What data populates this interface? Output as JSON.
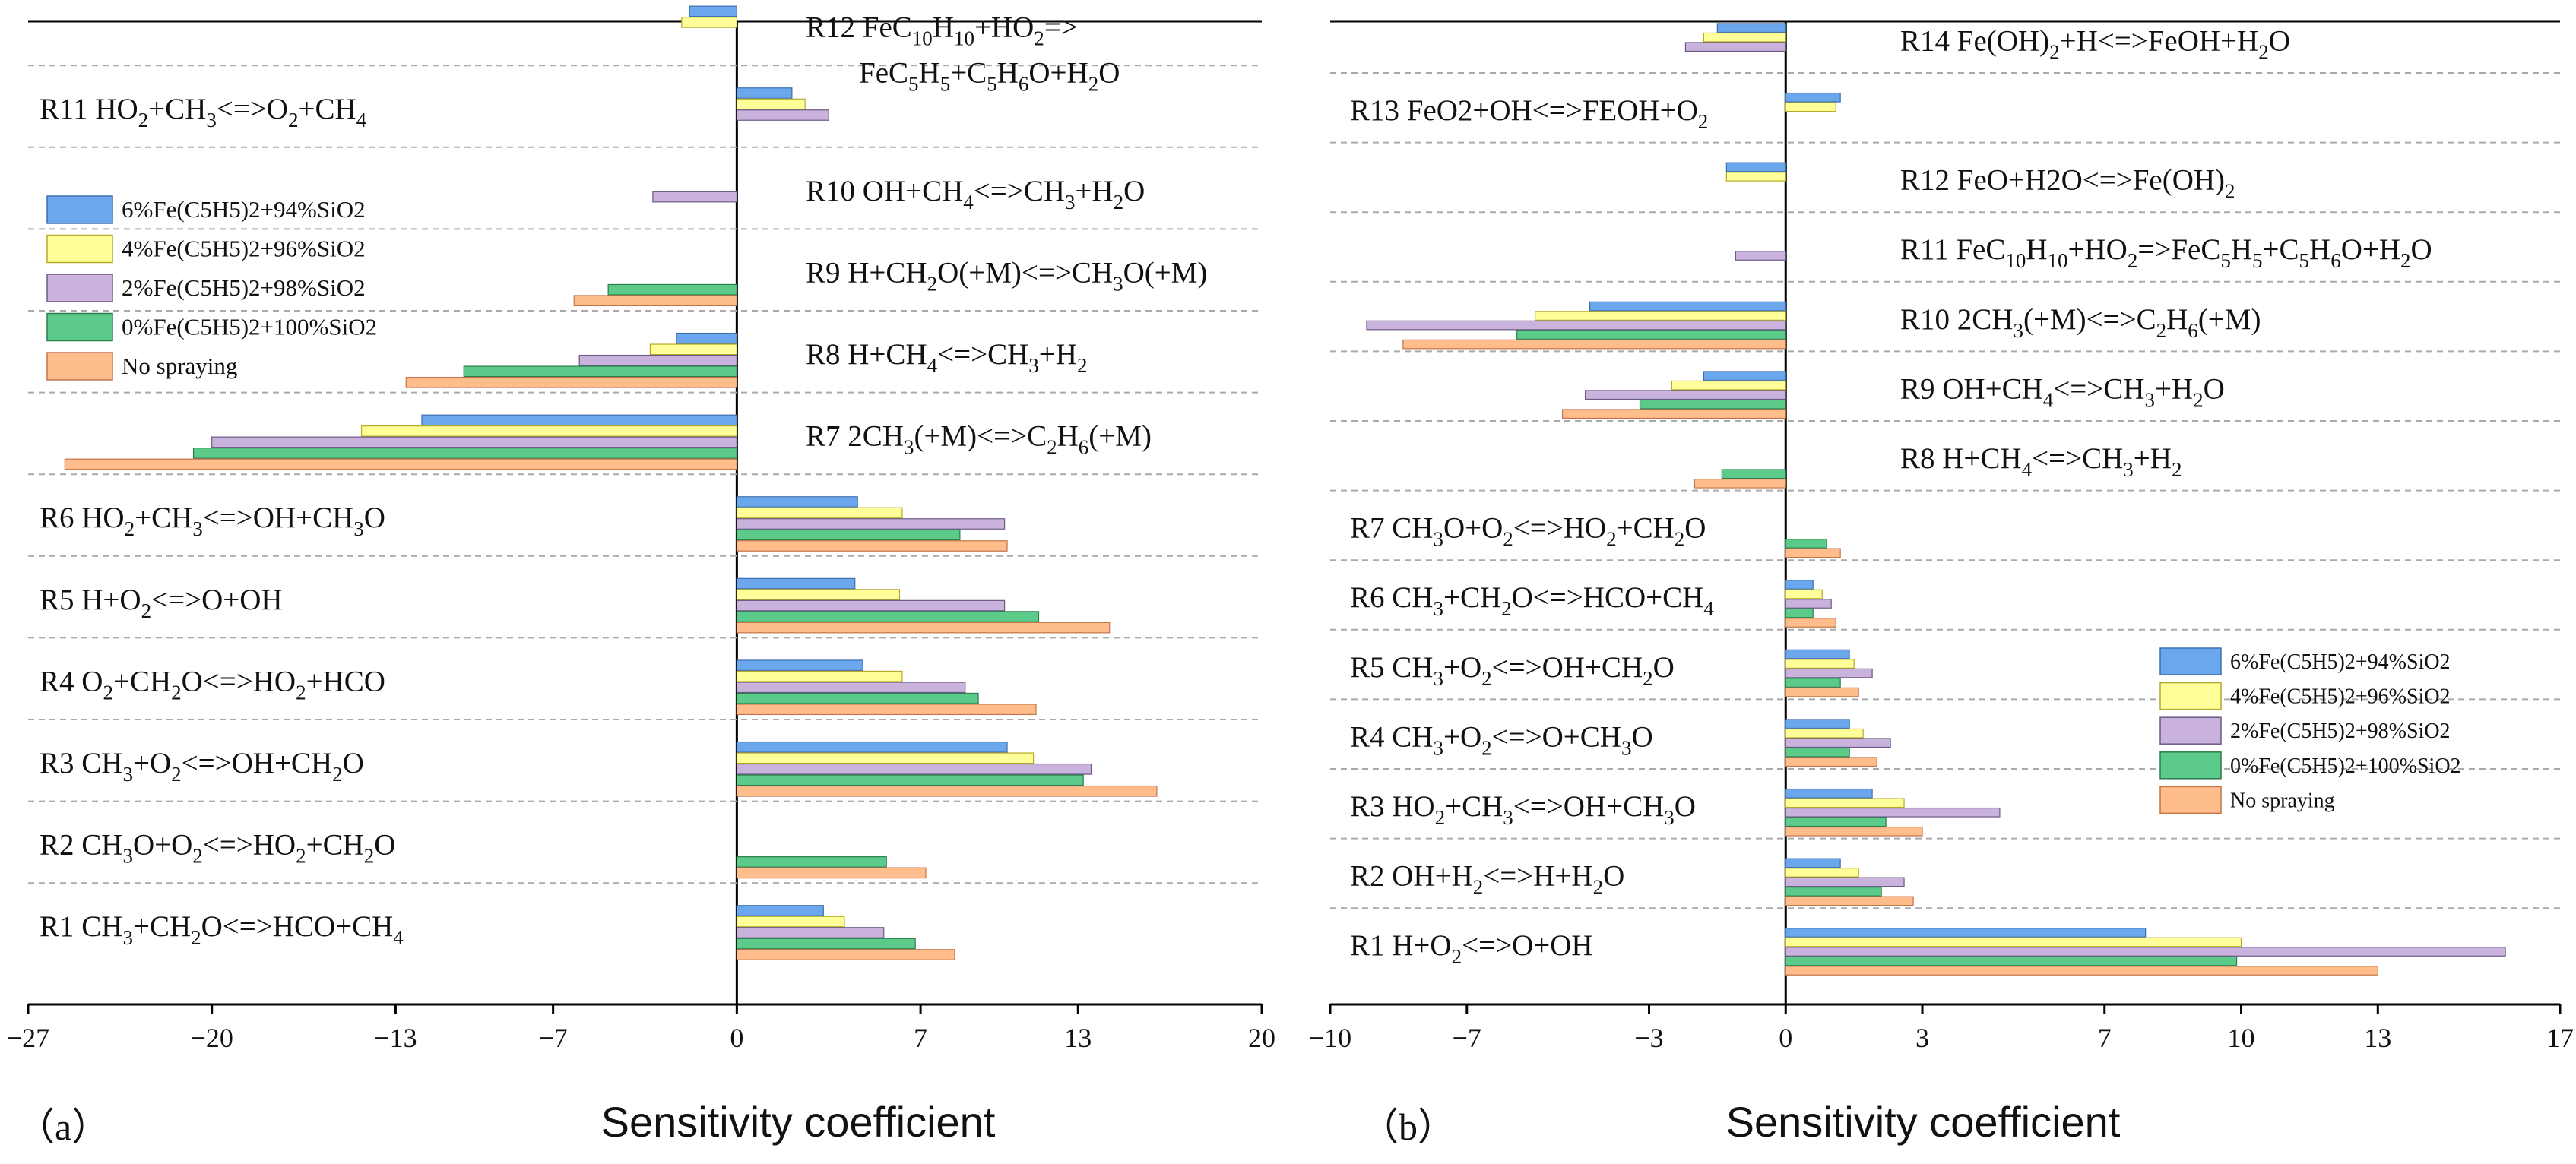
{
  "figure": {
    "xlabel": "Sensitivity coefficient"
  },
  "legend_entries": [
    "6%Fe(C5H5)2+94%SiO2",
    "4%Fe(C5H5)2+96%SiO2",
    "2%Fe(C5H5)2+98%SiO2",
    "0%Fe(C5H5)2+100%SiO2",
    "No spraying"
  ],
  "colors": [
    "#6aa7ec",
    "#ffff99",
    "#c9b3dd",
    "#5ccb8a",
    "#ffbd8c"
  ],
  "chart_data": [
    {
      "type": "bar",
      "orientation": "horizontal",
      "panel_label": "（a）",
      "xlabel": "Sensitivity coefficient",
      "xlim": [
        -27,
        20
      ],
      "xticks": [
        -27,
        -20,
        -13,
        -7,
        0,
        7,
        13,
        20
      ],
      "legend_position": "upper-left",
      "reactions": [
        {
          "id": "R1",
          "html": "R1 CH<sub>3</sub>+CH<sub>2</sub>O&lt;=&gt;HCO+CH<sub>4</sub>",
          "side": "left"
        },
        {
          "id": "R2",
          "html": "R2 CH<sub>3</sub>O+O<sub>2</sub>&lt;=&gt;HO<sub>2</sub>+CH<sub>2</sub>O",
          "side": "left"
        },
        {
          "id": "R3",
          "html": "R3  CH<sub>3</sub>+O<sub>2</sub>&lt;=&gt;OH+CH<sub>2</sub>O",
          "side": "left"
        },
        {
          "id": "R4",
          "html": "R4 O<sub>2</sub>+CH<sub>2</sub>O&lt;=&gt;HO<sub>2</sub>+HCO",
          "side": "left"
        },
        {
          "id": "R5",
          "html": "R5  H+O<sub>2</sub>&lt;=&gt;O+OH",
          "side": "left"
        },
        {
          "id": "R6",
          "html": "R6 HO<sub>2</sub>+CH<sub>3</sub>&lt;=&gt;OH+CH<sub>3</sub>O",
          "side": "left"
        },
        {
          "id": "R7",
          "html": "R7 2CH<sub>3</sub>(+M)&lt;=&gt;C<sub>2</sub>H<sub>6</sub>(+M)",
          "side": "right"
        },
        {
          "id": "R8",
          "html": "R8  H+CH<sub>4</sub>&lt;=&gt;CH<sub>3</sub>+H<sub>2</sub>",
          "side": "right"
        },
        {
          "id": "R9",
          "html": "R9 H+CH<sub>2</sub>O(+M)&lt;=&gt;CH<sub>3</sub>O(+M)",
          "side": "right"
        },
        {
          "id": "R10",
          "html": "R10 OH+CH<sub>4</sub>&lt;=&gt;CH<sub>3</sub>+H<sub>2</sub>O",
          "side": "right"
        },
        {
          "id": "R11",
          "html": "R11 HO<sub>2</sub>+CH<sub>3</sub>&lt;=&gt;O<sub>2</sub>+CH<sub>4</sub>",
          "side": "left"
        },
        {
          "id": "R12",
          "html": "R12 FeC<sub>10</sub>H<sub>10</sub>+HO<sub>2</sub>=&gt;",
          "html2": "FeC<sub>5</sub>H<sub>5</sub>+C<sub>5</sub>H<sub>6</sub>O+H<sub>2</sub>O",
          "side": "right"
        }
      ],
      "series": [
        {
          "name": "6%Fe(C5H5)2+94%SiO2",
          "values": [
            3.3,
            null,
            10.3,
            4.8,
            4.5,
            4.6,
            -12.0,
            -2.3,
            null,
            null,
            2.1,
            -1.8
          ]
        },
        {
          "name": "4%Fe(C5H5)2+96%SiO2",
          "values": [
            4.1,
            null,
            11.3,
            6.3,
            6.2,
            6.3,
            -14.3,
            -3.3,
            null,
            null,
            2.6,
            -2.1
          ]
        },
        {
          "name": "2%Fe(C5H5)2+98%SiO2",
          "values": [
            5.6,
            null,
            13.5,
            8.7,
            10.2,
            10.2,
            -20.0,
            -6.0,
            null,
            -3.2,
            3.5,
            null
          ]
        },
        {
          "name": "0%Fe(C5H5)2+100%SiO2",
          "values": [
            6.8,
            5.7,
            13.2,
            9.2,
            11.5,
            8.5,
            -20.7,
            -10.4,
            -4.9,
            null,
            null,
            null
          ]
        },
        {
          "name": "No spraying",
          "values": [
            8.3,
            7.2,
            16.0,
            11.4,
            14.2,
            10.3,
            -25.6,
            -12.6,
            -6.2,
            null,
            null,
            null
          ]
        }
      ]
    },
    {
      "type": "bar",
      "orientation": "horizontal",
      "panel_label": "（b）",
      "xlabel": "Sensitivity coefficient",
      "xlim": [
        -10,
        17
      ],
      "xticks": [
        -10,
        -7,
        -3,
        0,
        3,
        7,
        10,
        13,
        17
      ],
      "legend_position": "lower-right",
      "reactions": [
        {
          "id": "R1",
          "html": "R1 H+O<sub>2</sub>&lt;=&gt;O+OH",
          "side": "left"
        },
        {
          "id": "R2",
          "html": "R2 OH+H<sub>2</sub>&lt;=&gt;H+H<sub>2</sub>O",
          "side": "left"
        },
        {
          "id": "R3",
          "html": "R3  HO<sub>2</sub>+CH<sub>3</sub>&lt;=&gt;OH+CH<sub>3</sub>O",
          "side": "left"
        },
        {
          "id": "R4",
          "html": "R4 CH<sub>3</sub>+O<sub>2</sub>&lt;=&gt;O+CH<sub>3</sub>O",
          "side": "left"
        },
        {
          "id": "R5",
          "html": "R5 CH<sub>3</sub>+O<sub>2</sub>&lt;=&gt;OH+CH<sub>2</sub>O",
          "side": "left"
        },
        {
          "id": "R6",
          "html": "R6  CH<sub>3</sub>+CH<sub>2</sub>O&lt;=&gt;HCO+CH<sub>4</sub>",
          "side": "left"
        },
        {
          "id": "R7",
          "html": "R7 CH<sub>3</sub>O+O<sub>2</sub>&lt;=&gt;HO<sub>2</sub>+CH<sub>2</sub>O",
          "side": "left"
        },
        {
          "id": "R8",
          "html": "R8 H+CH<sub>4</sub>&lt;=&gt;CH<sub>3</sub>+H<sub>2</sub>",
          "side": "right"
        },
        {
          "id": "R9",
          "html": "R9 OH+CH<sub>4</sub>&lt;=&gt;CH<sub>3</sub>+H<sub>2</sub>O",
          "side": "right"
        },
        {
          "id": "R10",
          "html": "R10 2CH<sub>3</sub>(+M)&lt;=&gt;C<sub>2</sub>H<sub>6</sub>(+M)",
          "side": "right"
        },
        {
          "id": "R11",
          "html": "R11 FeC<sub>10</sub>H<sub>10</sub>+HO<sub>2</sub>=&gt;FeC<sub>5</sub>H<sub>5</sub>+C<sub>5</sub>H<sub>6</sub>O+H<sub>2</sub>O",
          "side": "right"
        },
        {
          "id": "R12",
          "html": "R12 FeO+H2O&lt;=&gt;Fe(OH)<sub>2</sub>",
          "side": "right"
        },
        {
          "id": "R13",
          "html": "R13 FeO2+OH&lt;=&gt;FEOH+O<sub>2</sub>",
          "side": "left"
        },
        {
          "id": "R14",
          "html": "R14  Fe(OH)<sub>2</sub>+H&lt;=&gt;FeOH+H<sub>2</sub>O",
          "side": "right"
        }
      ],
      "series": [
        {
          "name": "6%Fe(C5H5)2+94%SiO2",
          "values": [
            7.9,
            1.2,
            1.9,
            1.4,
            1.4,
            0.6,
            null,
            null,
            -1.8,
            -4.3,
            null,
            -1.3,
            1.2,
            -1.5
          ]
        },
        {
          "name": "4%Fe(C5H5)2+96%SiO2",
          "values": [
            10.0,
            1.6,
            2.6,
            1.7,
            1.5,
            0.8,
            null,
            null,
            -2.5,
            -5.5,
            null,
            -1.3,
            1.1,
            -1.8
          ]
        },
        {
          "name": "2%Fe(C5H5)2+98%SiO2",
          "values": [
            15.8,
            2.6,
            4.7,
            2.3,
            1.9,
            1.0,
            null,
            null,
            -4.4,
            -9.2,
            -1.1,
            null,
            null,
            -2.2
          ]
        },
        {
          "name": "0%Fe(C5H5)2+100%SiO2",
          "values": [
            9.9,
            2.1,
            2.2,
            1.4,
            1.2,
            0.6,
            0.9,
            -1.4,
            -3.2,
            -5.9,
            null,
            null,
            null,
            null
          ]
        },
        {
          "name": "No spraying",
          "values": [
            13.0,
            2.8,
            3.0,
            2.0,
            1.6,
            1.1,
            1.2,
            -2.0,
            -4.9,
            -8.4,
            null,
            null,
            null,
            null
          ]
        }
      ]
    }
  ]
}
